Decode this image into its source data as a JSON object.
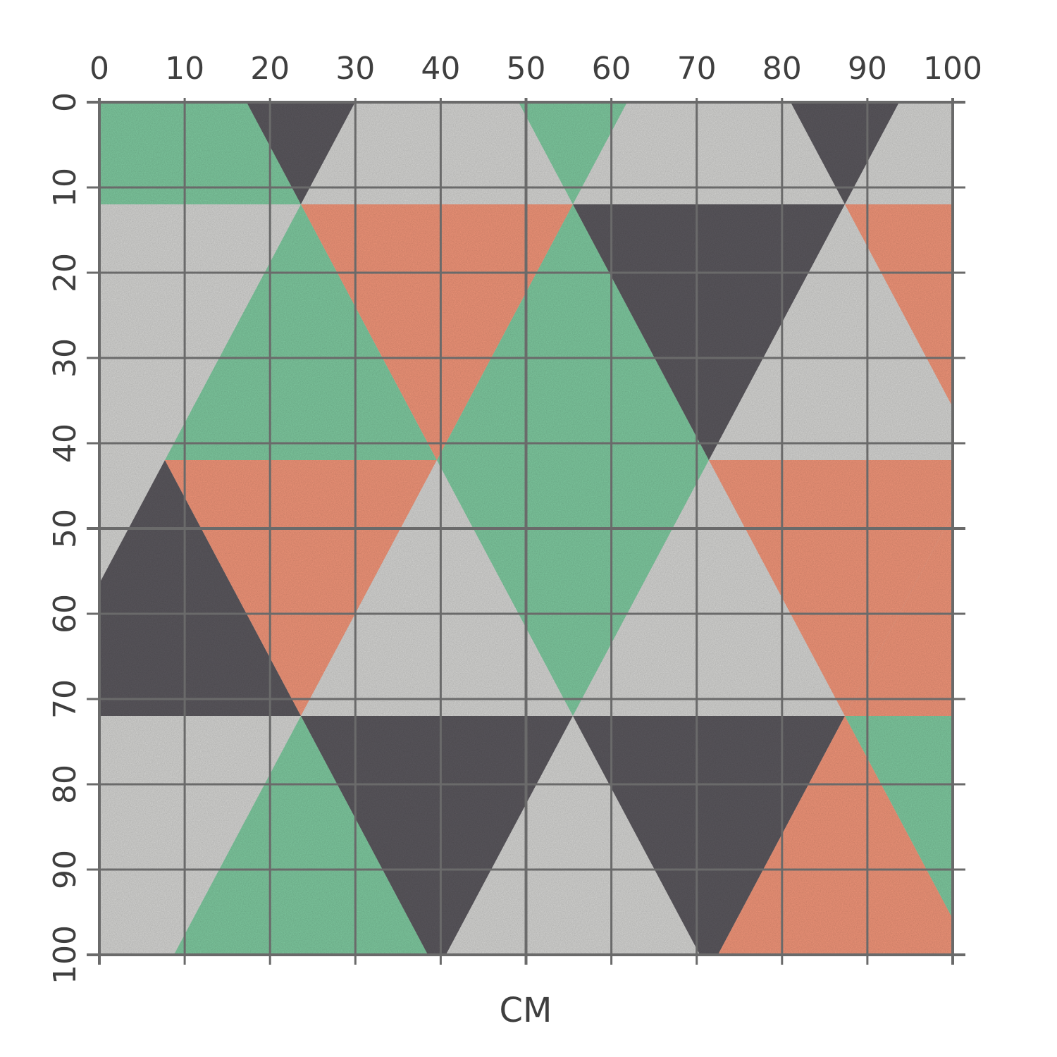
{
  "colors": {
    "green": "#7fcaa0",
    "orange": "#f2967a",
    "charcoal": "#5b585e",
    "concrete": "#d6d6d4",
    "grid": "#6a6a6a",
    "text": "#3f3f3f"
  },
  "scale": {
    "unit_label": "CM",
    "x_ticks": [
      "0",
      "10",
      "20",
      "30",
      "40",
      "50",
      "60",
      "70",
      "80",
      "90",
      "100"
    ],
    "y_ticks": [
      "0",
      "10",
      "20",
      "30",
      "40",
      "50",
      "60",
      "70",
      "80",
      "90",
      "100"
    ]
  },
  "pattern": {
    "columns": 9,
    "rows": 4,
    "row_colors": [
      [
        "green",
        "charcoal",
        "concrete",
        "green",
        "concrete",
        "charcoal",
        "concrete",
        "charcoal",
        "green"
      ],
      [
        "green",
        "orange",
        "green",
        "charcoal",
        "concrete",
        "orange",
        "orange",
        "concrete",
        "concrete"
      ],
      [
        "charcoal",
        "orange",
        "concrete",
        "green",
        "concrete",
        "orange",
        "orange",
        "concrete",
        "concrete"
      ],
      [
        "green",
        "charcoal",
        "concrete",
        "charcoal",
        "orange",
        "green",
        "green",
        "concrete",
        "green"
      ]
    ]
  }
}
